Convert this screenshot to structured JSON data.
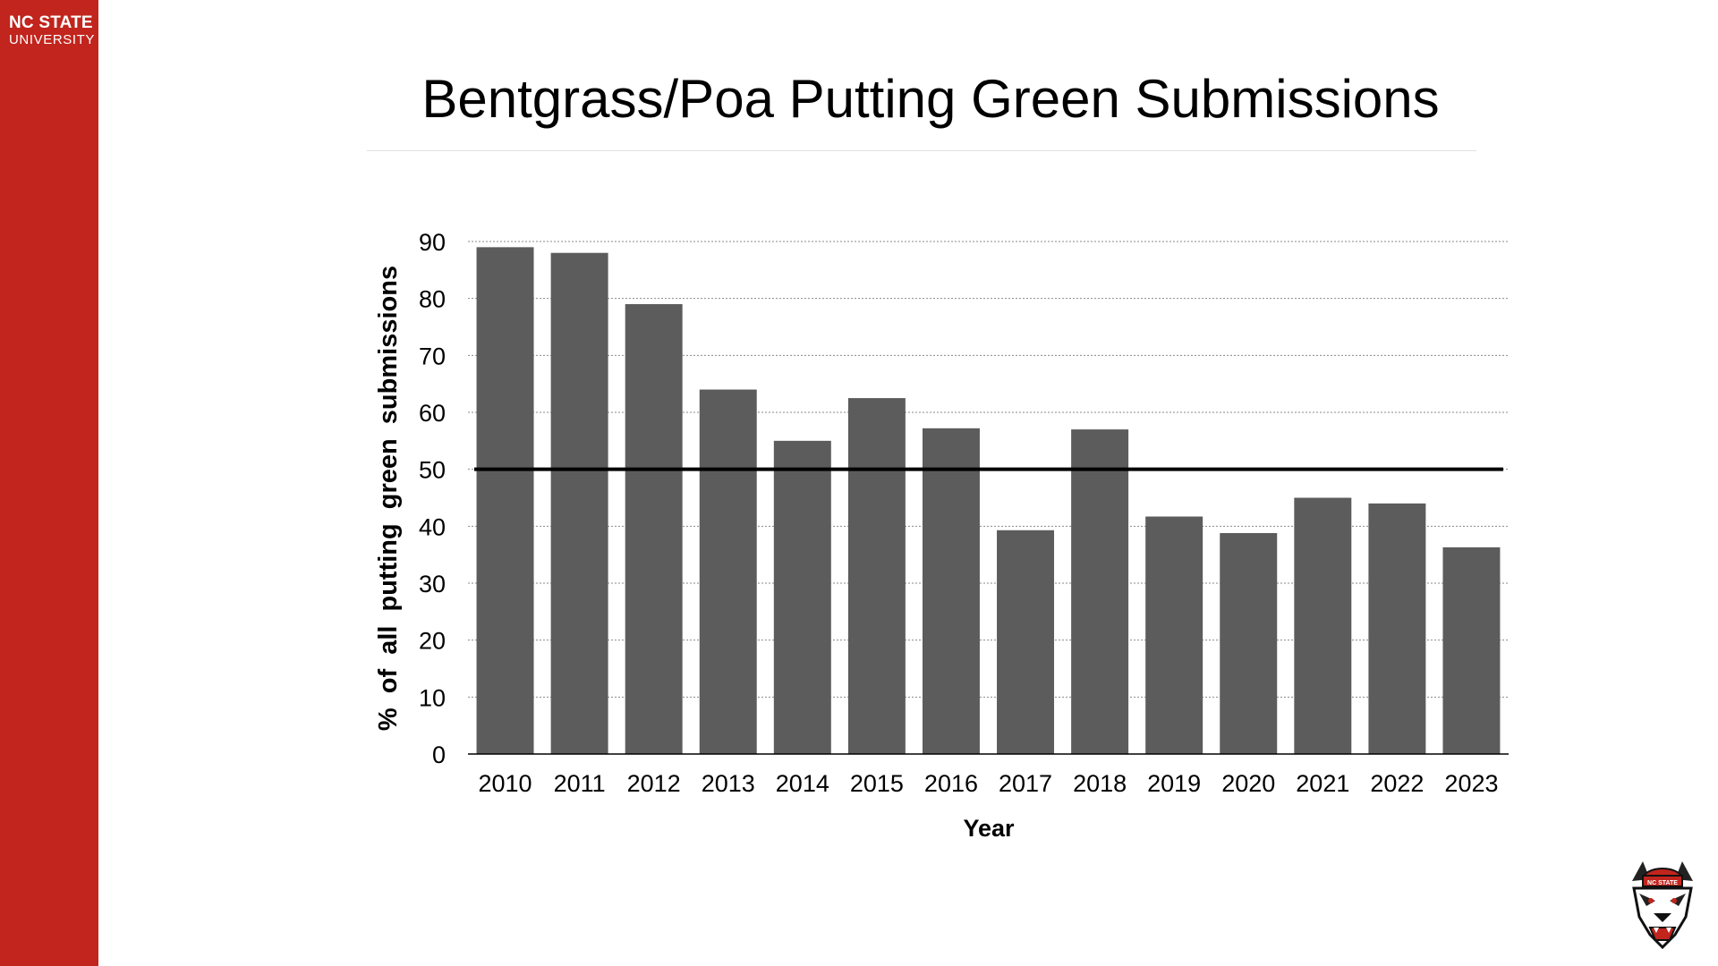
{
  "branding": {
    "logo_line1": "NC STATE",
    "logo_line2": "UNIVERSITY",
    "sidebar_color": "#c1251d",
    "mascot_icon": "wolf-mascot-icon",
    "mascot_hat_text": "NC STATE"
  },
  "slide": {
    "title": "Bentgrass/Poa Putting Green Submissions"
  },
  "chart_data": {
    "type": "bar",
    "title": "Bentgrass/Poa Putting Green Submissions",
    "xlabel": "Year",
    "ylabel": "% of all putting green submissions",
    "categories": [
      "2010",
      "2011",
      "2012",
      "2013",
      "2014",
      "2015",
      "2016",
      "2017",
      "2018",
      "2019",
      "2020",
      "2021",
      "2022",
      "2023"
    ],
    "values": [
      89,
      88,
      79,
      64,
      55,
      62.5,
      57.2,
      39.3,
      57,
      41.7,
      38.8,
      45,
      44,
      36.3
    ],
    "ylim": [
      0,
      90
    ],
    "yticks": [
      0,
      10,
      20,
      30,
      40,
      50,
      60,
      70,
      80,
      90
    ],
    "reference_line": 50,
    "grid": true,
    "bar_color": "#5c5c5c"
  }
}
